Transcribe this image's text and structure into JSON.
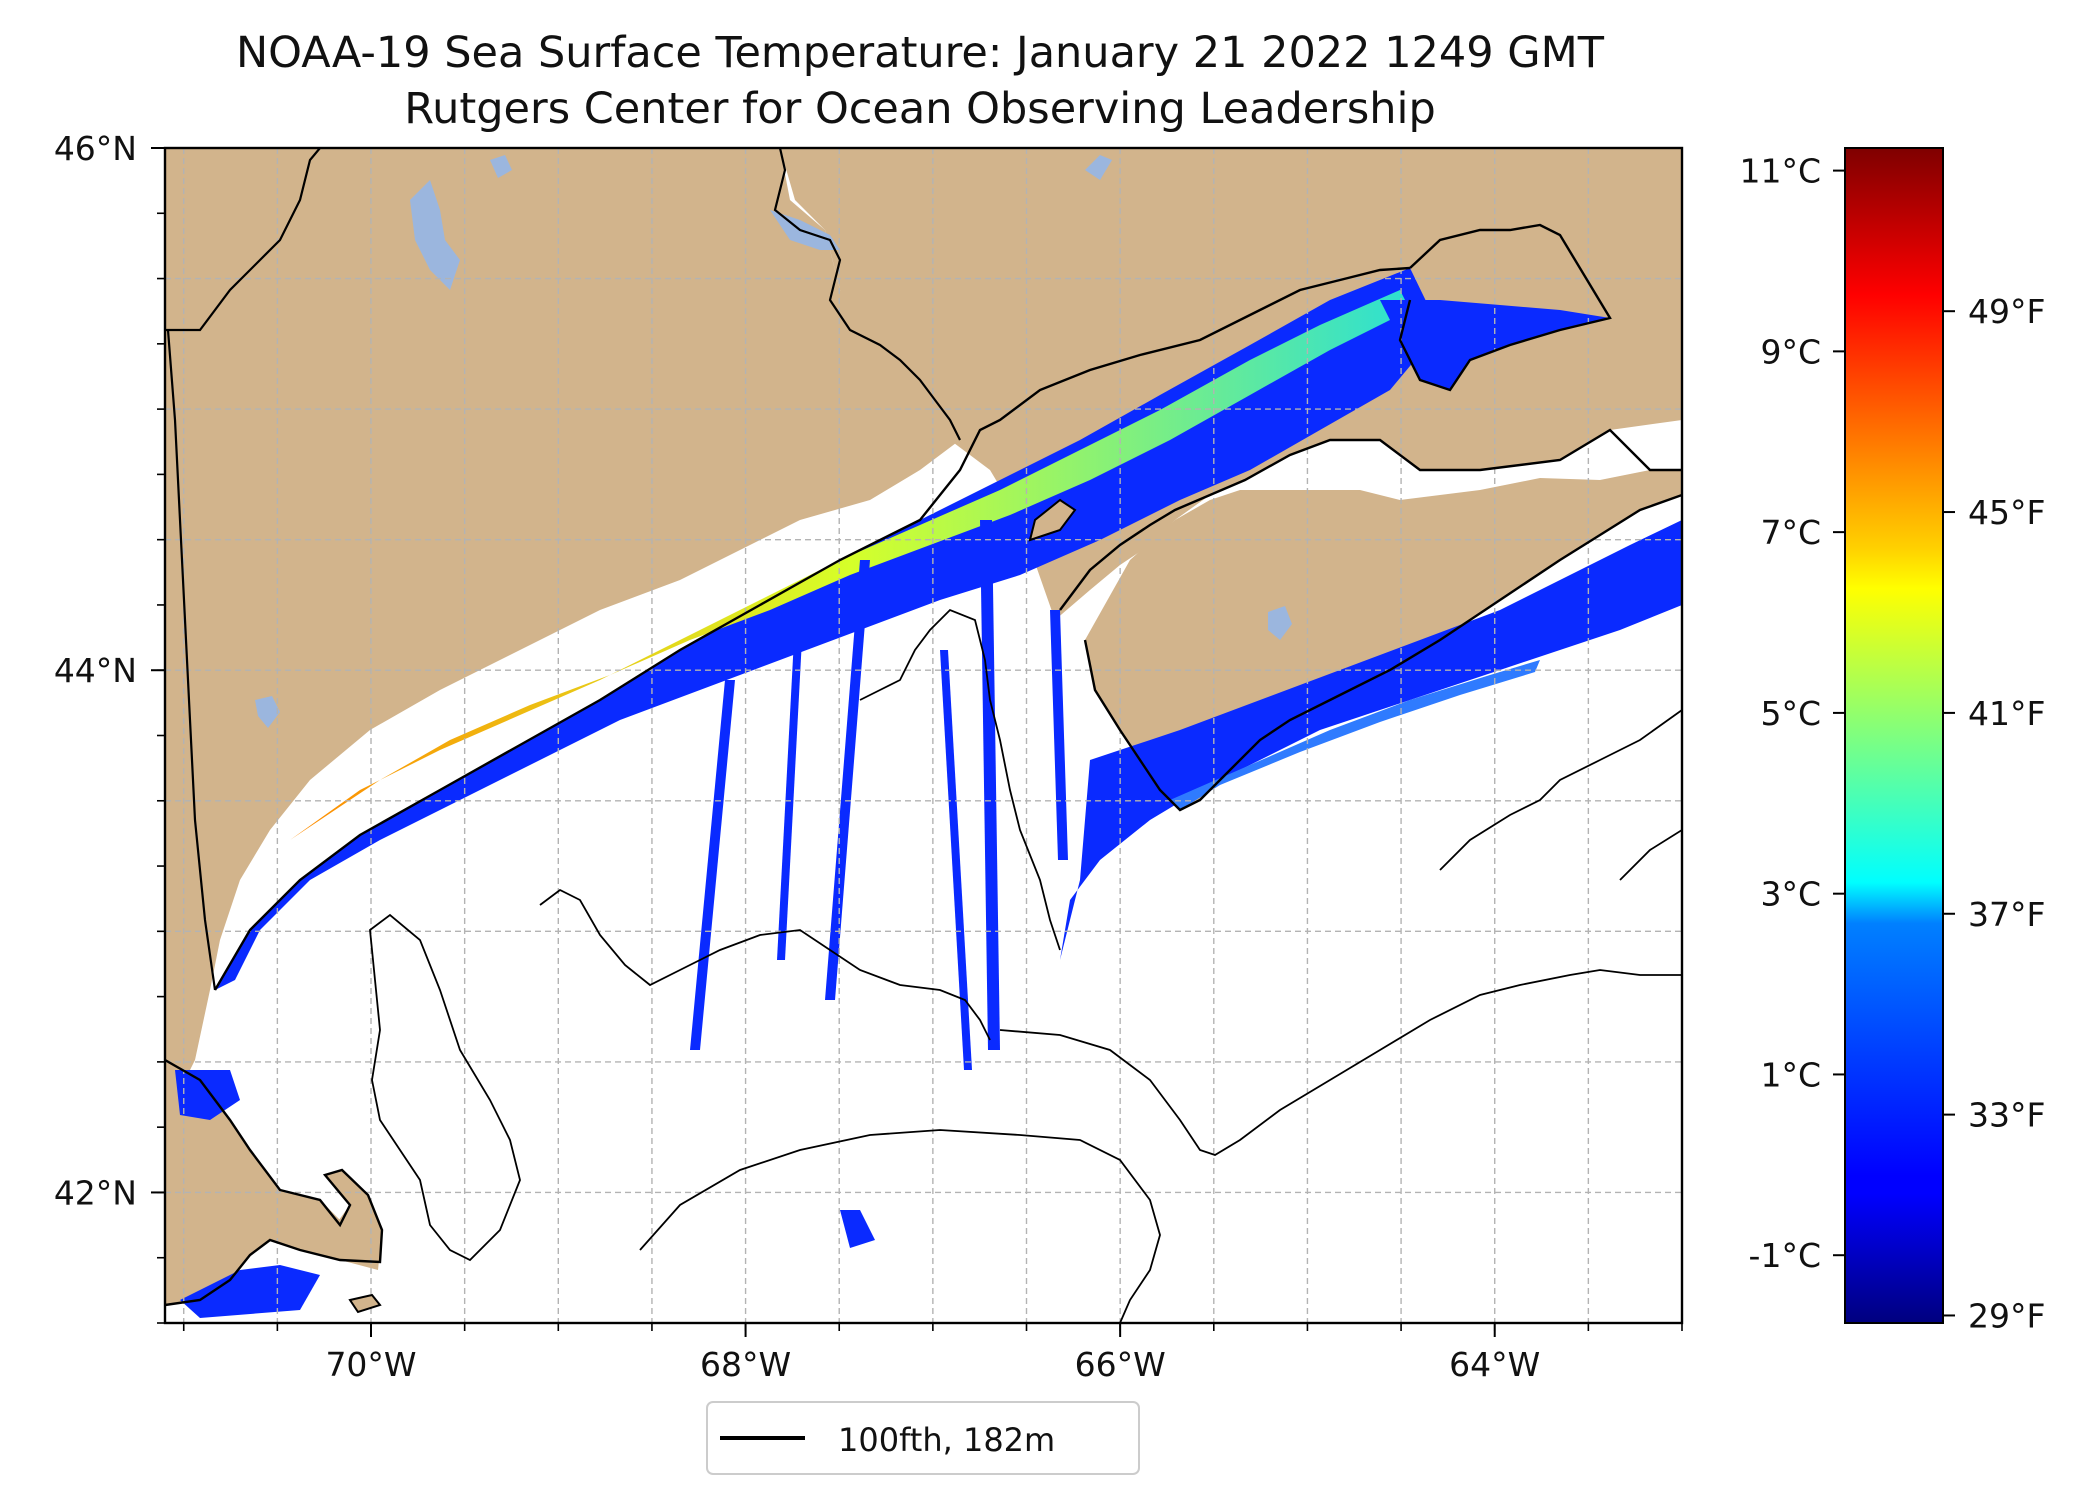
{
  "title": {
    "line1": "NOAA-19 Sea Surface Temperature: January 21 2022 1249 GMT",
    "line2": "Rutgers Center for Ocean Observing Leadership"
  },
  "map": {
    "lon_range": [
      -71.1,
      -63.0
    ],
    "lat_range": [
      41.5,
      46.0
    ],
    "lon_ticks": [
      {
        "value": -70,
        "label": "70°W"
      },
      {
        "value": -68,
        "label": "68°W"
      },
      {
        "value": -66,
        "label": "66°W"
      },
      {
        "value": -64,
        "label": "64°W"
      }
    ],
    "lat_ticks": [
      {
        "value": 46,
        "label": "46°N"
      },
      {
        "value": 44,
        "label": "44°N"
      },
      {
        "value": 42,
        "label": "42°N"
      }
    ],
    "gridlines": true,
    "land_color": "#d2b48c",
    "lake_color": "#9bb6de",
    "ocean_color": "#ffffff"
  },
  "legend": {
    "label": "100fth, 182m",
    "line_color": "#000000"
  },
  "colorbar": {
    "colormap": "jet",
    "celsius_range": [
      -1.75,
      11.25
    ],
    "celsius_ticks": [
      {
        "value": 11,
        "label": "11°C"
      },
      {
        "value": 9,
        "label": "9°C"
      },
      {
        "value": 7,
        "label": "7°C"
      },
      {
        "value": 5,
        "label": "5°C"
      },
      {
        "value": 3,
        "label": "3°C"
      },
      {
        "value": 1,
        "label": "1°C"
      },
      {
        "value": -1,
        "label": "-1°C"
      }
    ],
    "fahrenheit_ticks": [
      {
        "value": 49,
        "label": "49°F"
      },
      {
        "value": 45,
        "label": "45°F"
      },
      {
        "value": 41,
        "label": "41°F"
      },
      {
        "value": 37,
        "label": "37°F"
      },
      {
        "value": 33,
        "label": "33°F"
      },
      {
        "value": 29,
        "label": "29°F"
      }
    ]
  }
}
